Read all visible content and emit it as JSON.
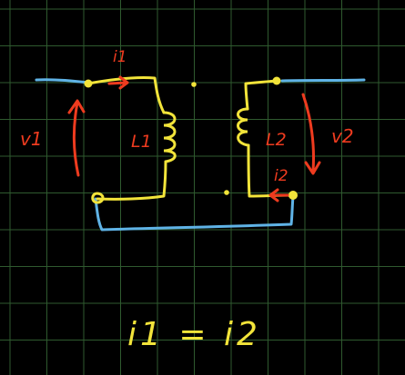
{
  "colors": {
    "background": "#000000",
    "grid": "#2f5a2f",
    "circuit_wire": "#f2e43a",
    "external_wire": "#5fb3e6",
    "annotation": "#ee3b1f",
    "equation": "#f2e43a"
  },
  "labels": {
    "i1": "i1",
    "i2": "i2",
    "v1": "v1",
    "v2": "v2",
    "l1": "L1",
    "l2": "L2"
  },
  "equation": "i1 = i2"
}
